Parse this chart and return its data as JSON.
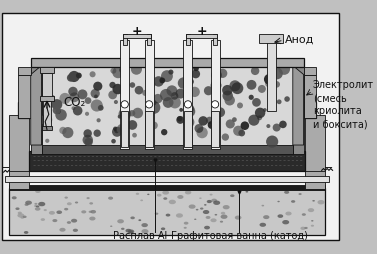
{
  "bg_color": "#c8c8c8",
  "labels": {
    "co2": "CO₂",
    "anode": "Анод",
    "electrolyte": "Электролит\n(смесь\nкриолита\nи боксита)",
    "al_melt": "Расплав Al",
    "graphite": "Графитовая ванна (катод)"
  },
  "font_size": 7.0
}
